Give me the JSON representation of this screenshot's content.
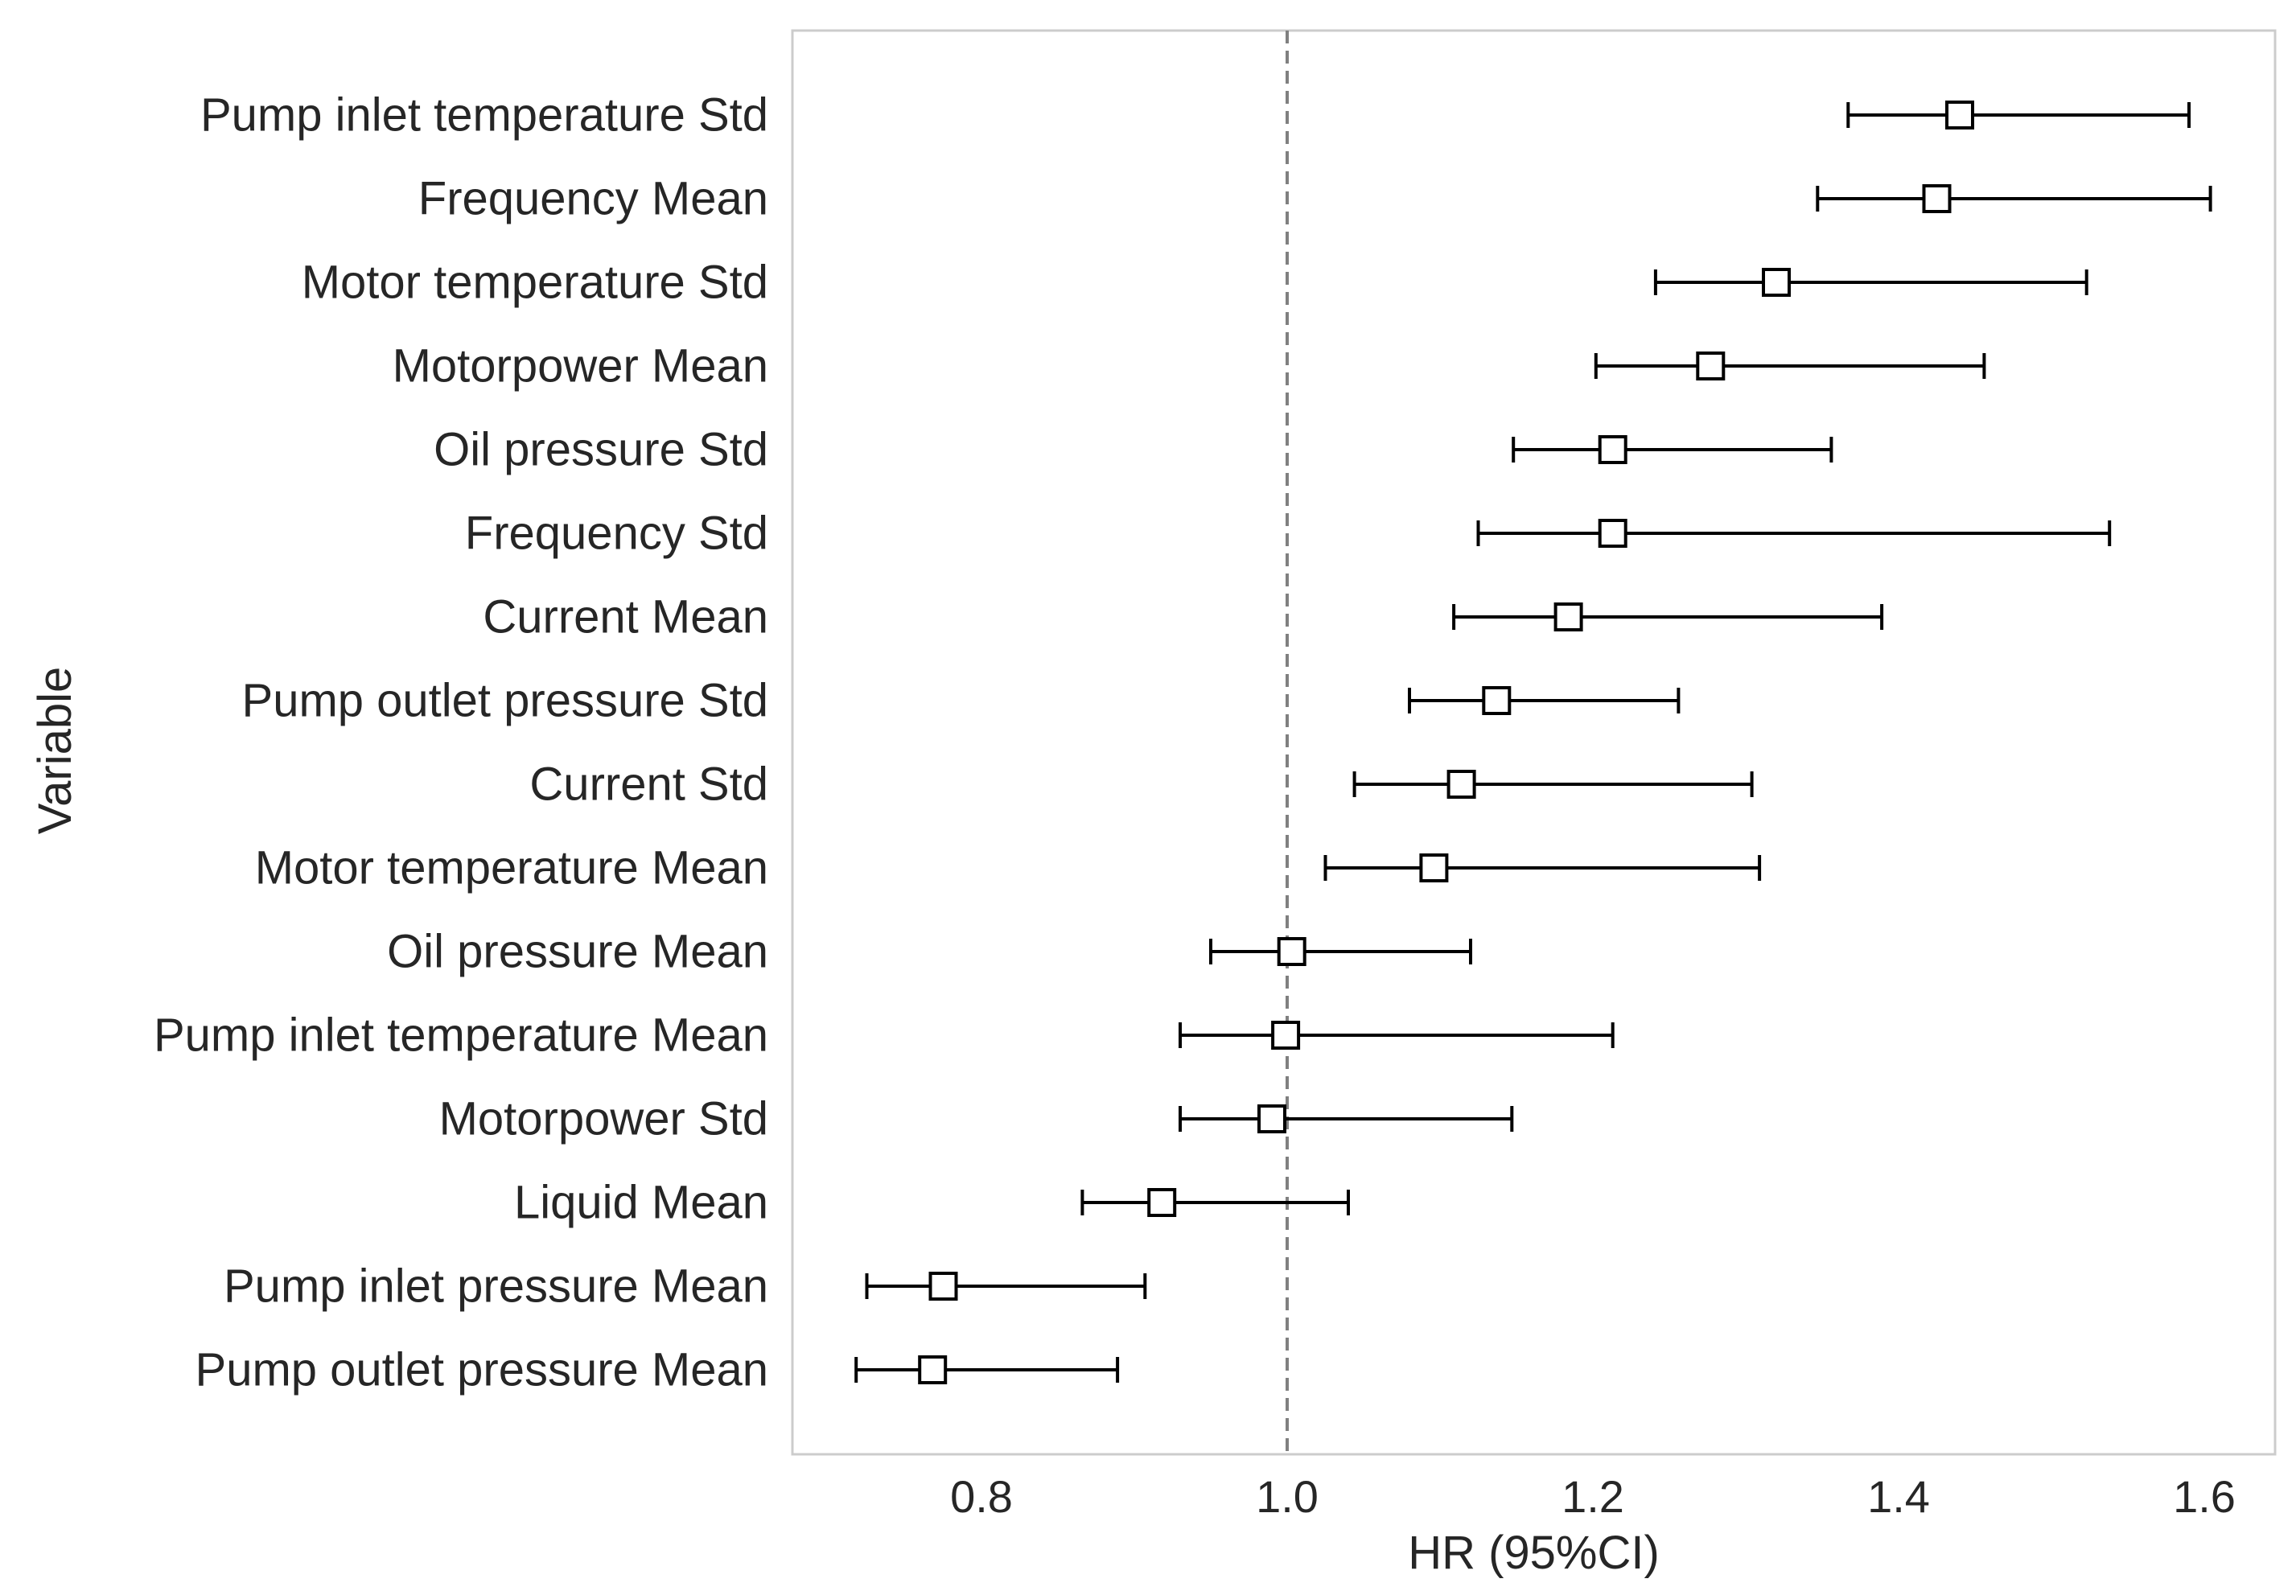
{
  "chart_data": {
    "type": "forest",
    "title": "",
    "xlabel": "HR (95%CI)",
    "ylabel": "Variable",
    "xlim": [
      0.68,
      1.65
    ],
    "xticks": [
      0.8,
      1.0,
      1.2,
      1.4,
      1.6
    ],
    "xtick_labels": [
      "0.8",
      "1.0",
      "1.2",
      "1.4",
      "1.6"
    ],
    "reference_line": 1.0,
    "grid": false,
    "marker": "open-square",
    "colors": {
      "line": "#000000",
      "marker_fill": "#ffffff",
      "reference": "#808080",
      "frame": "#cccccc",
      "text": "#262626"
    },
    "rows": [
      {
        "label": "Pump inlet temperature Std",
        "hr": 1.44,
        "lower": 1.367,
        "upper": 1.59
      },
      {
        "label": "Frequency Mean",
        "hr": 1.425,
        "lower": 1.347,
        "upper": 1.604
      },
      {
        "label": "Motor temperature Std",
        "hr": 1.32,
        "lower": 1.241,
        "upper": 1.523
      },
      {
        "label": "Motorpower Mean",
        "hr": 1.277,
        "lower": 1.202,
        "upper": 1.456
      },
      {
        "label": "Oil pressure Std",
        "hr": 1.213,
        "lower": 1.148,
        "upper": 1.356
      },
      {
        "label": "Frequency Std",
        "hr": 1.213,
        "lower": 1.125,
        "upper": 1.538
      },
      {
        "label": "Current Mean",
        "hr": 1.184,
        "lower": 1.109,
        "upper": 1.389
      },
      {
        "label": "Pump outlet pressure Std",
        "hr": 1.137,
        "lower": 1.08,
        "upper": 1.256
      },
      {
        "label": "Current Std",
        "hr": 1.114,
        "lower": 1.044,
        "upper": 1.304
      },
      {
        "label": "Motor temperature Mean",
        "hr": 1.096,
        "lower": 1.025,
        "upper": 1.309
      },
      {
        "label": "Oil pressure Mean",
        "hr": 1.003,
        "lower": 0.95,
        "upper": 1.12
      },
      {
        "label": "Pump inlet temperature Mean",
        "hr": 0.999,
        "lower": 0.93,
        "upper": 1.213
      },
      {
        "label": "Motorpower Std",
        "hr": 0.99,
        "lower": 0.93,
        "upper": 1.147
      },
      {
        "label": "Liquid Mean",
        "hr": 0.918,
        "lower": 0.866,
        "upper": 1.04
      },
      {
        "label": "Pump inlet pressure Mean",
        "hr": 0.775,
        "lower": 0.725,
        "upper": 0.907
      },
      {
        "label": "Pump outlet pressure Mean",
        "hr": 0.768,
        "lower": 0.718,
        "upper": 0.889
      }
    ]
  }
}
